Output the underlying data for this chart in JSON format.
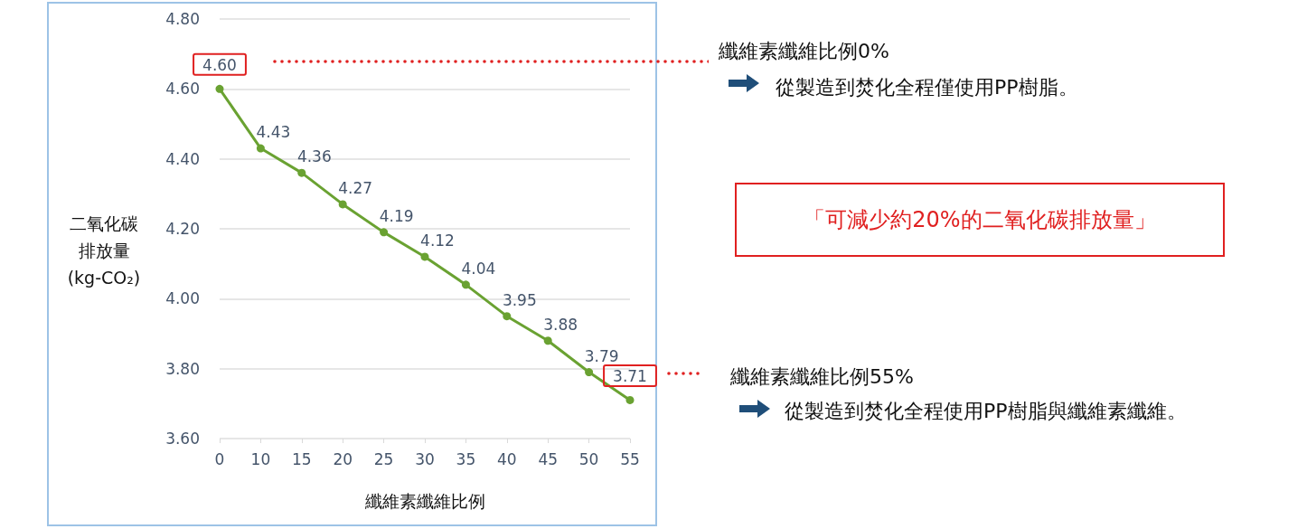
{
  "chart_data": {
    "type": "line",
    "categories": [
      "0",
      "10",
      "15",
      "20",
      "25",
      "30",
      "35",
      "40",
      "45",
      "50",
      "55"
    ],
    "series": [
      {
        "color": "#6aa232",
        "values": [
          4.6,
          4.43,
          4.36,
          4.27,
          4.19,
          4.12,
          4.04,
          3.95,
          3.88,
          3.79,
          3.71
        ],
        "value_labels": [
          "4.60",
          "4.43",
          "4.36",
          "4.27",
          "4.19",
          "4.12",
          "4.04",
          "3.95",
          "3.88",
          "3.79",
          "3.71"
        ]
      }
    ],
    "xlabel": "纖維素纖維比例",
    "ylabel": "二氧化碳排放量(kg-CO₂)",
    "ylim": [
      3.6,
      4.8
    ],
    "yticks": [
      {
        "value": 3.6,
        "label": "3.60"
      },
      {
        "value": 3.8,
        "label": "3.80"
      },
      {
        "value": 4.0,
        "label": "4.00"
      },
      {
        "value": 4.2,
        "label": "4.20"
      },
      {
        "value": 4.4,
        "label": "4.40"
      },
      {
        "value": 4.6,
        "label": "4.60"
      },
      {
        "value": 4.8,
        "label": "4.80"
      }
    ],
    "grid": "y",
    "marker": "circle",
    "line_style": "solid",
    "annotations": [
      "纖維素纖維比例0%",
      "從製造到焚化全程僅使用PP樹脂。",
      "「可減少約20%的二氧化碳排放量」",
      "纖維素纖維比例55%",
      "從製造到焚化全程使用PP樹脂與纖維素纖維。"
    ]
  }
}
